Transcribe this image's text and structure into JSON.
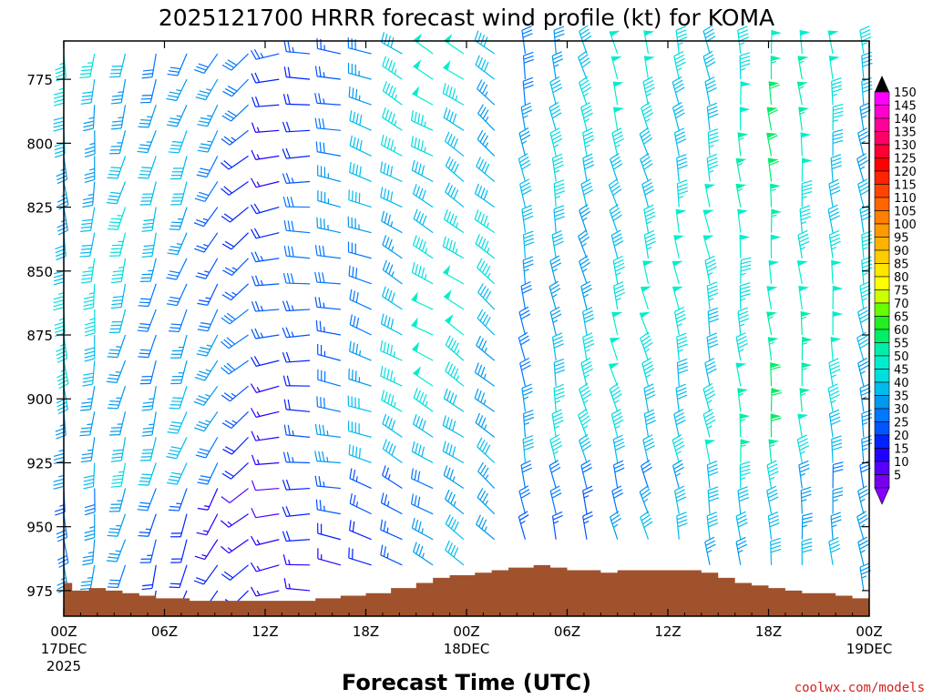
{
  "chart_data": {
    "type": "wind_barb_profile",
    "title": "2025121700 HRRR forecast wind profile (kt) for KOMA",
    "xlabel": "Forecast Time (UTC)",
    "credit": "coolwx.com/models",
    "y_ticks": [
      "775",
      "800",
      "825",
      "850",
      "875",
      "900",
      "925",
      "950",
      "975"
    ],
    "y_tick_values": [
      775,
      800,
      825,
      850,
      875,
      900,
      925,
      950,
      975
    ],
    "ylim": [
      760,
      985
    ],
    "x_ticks": [
      {
        "hour": 0,
        "line1": "00Z",
        "line2": "17DEC",
        "line3": "2025"
      },
      {
        "hour": 6,
        "line1": "06Z",
        "line2": "",
        "line3": ""
      },
      {
        "hour": 12,
        "line1": "12Z",
        "line2": "",
        "line3": ""
      },
      {
        "hour": 18,
        "line1": "18Z",
        "line2": "",
        "line3": ""
      },
      {
        "hour": 24,
        "line1": "00Z",
        "line2": "18DEC",
        "line3": ""
      },
      {
        "hour": 30,
        "line1": "06Z",
        "line2": "",
        "line3": ""
      },
      {
        "hour": 36,
        "line1": "12Z",
        "line2": "",
        "line3": ""
      },
      {
        "hour": 42,
        "line1": "18Z",
        "line2": "",
        "line3": ""
      },
      {
        "hour": 48,
        "line1": "00Z",
        "line2": "19DEC",
        "line3": ""
      }
    ],
    "xlim": [
      0,
      48
    ],
    "colorbar": {
      "labels": [
        "150",
        "145",
        "140",
        "135",
        "130",
        "125",
        "120",
        "115",
        "110",
        "105",
        "100",
        "95",
        "90",
        "85",
        "80",
        "75",
        "70",
        "65",
        "60",
        "55",
        "50",
        "45",
        "40",
        "35",
        "30",
        "25",
        "20",
        "15",
        "10",
        "5"
      ],
      "colors": [
        "#ff00ff",
        "#ff00cc",
        "#ff0099",
        "#ff0066",
        "#ff0033",
        "#ff0000",
        "#ff2200",
        "#ff4400",
        "#ff6600",
        "#ff7f00",
        "#ff9900",
        "#ffb300",
        "#ffcc00",
        "#ffe600",
        "#ffff00",
        "#ccff00",
        "#66ff00",
        "#22ee22",
        "#00ee66",
        "#00eeaa",
        "#00eecc",
        "#00dddd",
        "#00bbee",
        "#0099ee",
        "#0077ff",
        "#0055ff",
        "#0022ff",
        "#2200ff",
        "#5500ff",
        "#7700ee"
      ],
      "top_arrow": "#000000",
      "bottom_arrow": "#8800ff"
    },
    "terrain": {
      "color": "#a0522d",
      "hours": [
        0,
        0.5,
        1.5,
        2.5,
        3.5,
        4.5,
        5.5,
        7.5,
        9.5,
        15,
        16.5,
        18,
        19.5,
        21,
        22,
        23,
        24.5,
        25.5,
        26.5,
        28,
        29,
        30,
        31,
        32,
        33,
        37,
        38,
        39,
        40,
        41,
        42,
        43,
        44,
        46,
        47,
        48
      ],
      "pressure": [
        972,
        975,
        974,
        975,
        976,
        977,
        978,
        979,
        979,
        978,
        977,
        976,
        974,
        972,
        970,
        969,
        968,
        967,
        966,
        965,
        966,
        967,
        967,
        968,
        967,
        967,
        968,
        970,
        972,
        973,
        974,
        975,
        976,
        977,
        978,
        979
      ]
    },
    "barb_columns_hours": [
      0,
      1.833,
      3.667,
      5.5,
      7.333,
      9.167,
      11,
      12.833,
      14.667,
      16.5,
      18.333,
      20.167,
      22,
      23.833,
      25.667,
      27.5,
      29.333,
      31.167,
      33,
      34.833,
      36.667,
      38.5,
      40.333,
      42.167,
      44,
      45.833,
      47.667
    ],
    "barb_levels": [
      765,
      775,
      785,
      795,
      805,
      815,
      825,
      835,
      845,
      855,
      865,
      875,
      885,
      895,
      905,
      915,
      925,
      935,
      945,
      955,
      965,
      975
    ],
    "barb_columns": [
      {
        "dir": 175,
        "spd": 40
      },
      {
        "dir": 185,
        "spd": 40
      },
      {
        "dir": 195,
        "spd": 40
      },
      {
        "dir": 195,
        "spd": 35
      },
      {
        "dir": 200,
        "spd": 35
      },
      {
        "dir": 210,
        "spd": 30
      },
      {
        "dir": 230,
        "spd": 25
      },
      {
        "dir": 260,
        "spd": 20
      },
      {
        "dir": 270,
        "spd": 25
      },
      {
        "dir": 280,
        "spd": 30
      },
      {
        "dir": 290,
        "spd": 35
      },
      {
        "dir": 300,
        "spd": 40
      },
      {
        "dir": 300,
        "spd": 45
      },
      {
        "dir": 305,
        "spd": 45
      },
      {
        "dir": 310,
        "spd": 40
      },
      {
        "dir": 350,
        "spd": 35
      },
      {
        "dir": 350,
        "spd": 40
      },
      {
        "dir": 345,
        "spd": 40
      },
      {
        "dir": 345,
        "spd": 45
      },
      {
        "dir": 345,
        "spd": 45
      },
      {
        "dir": 350,
        "spd": 45
      },
      {
        "dir": 350,
        "spd": 45
      },
      {
        "dir": 355,
        "spd": 50
      },
      {
        "dir": 355,
        "spd": 55
      },
      {
        "dir": 355,
        "spd": 50
      },
      {
        "dir": 355,
        "spd": 45
      },
      {
        "dir": 350,
        "spd": 40
      }
    ]
  }
}
